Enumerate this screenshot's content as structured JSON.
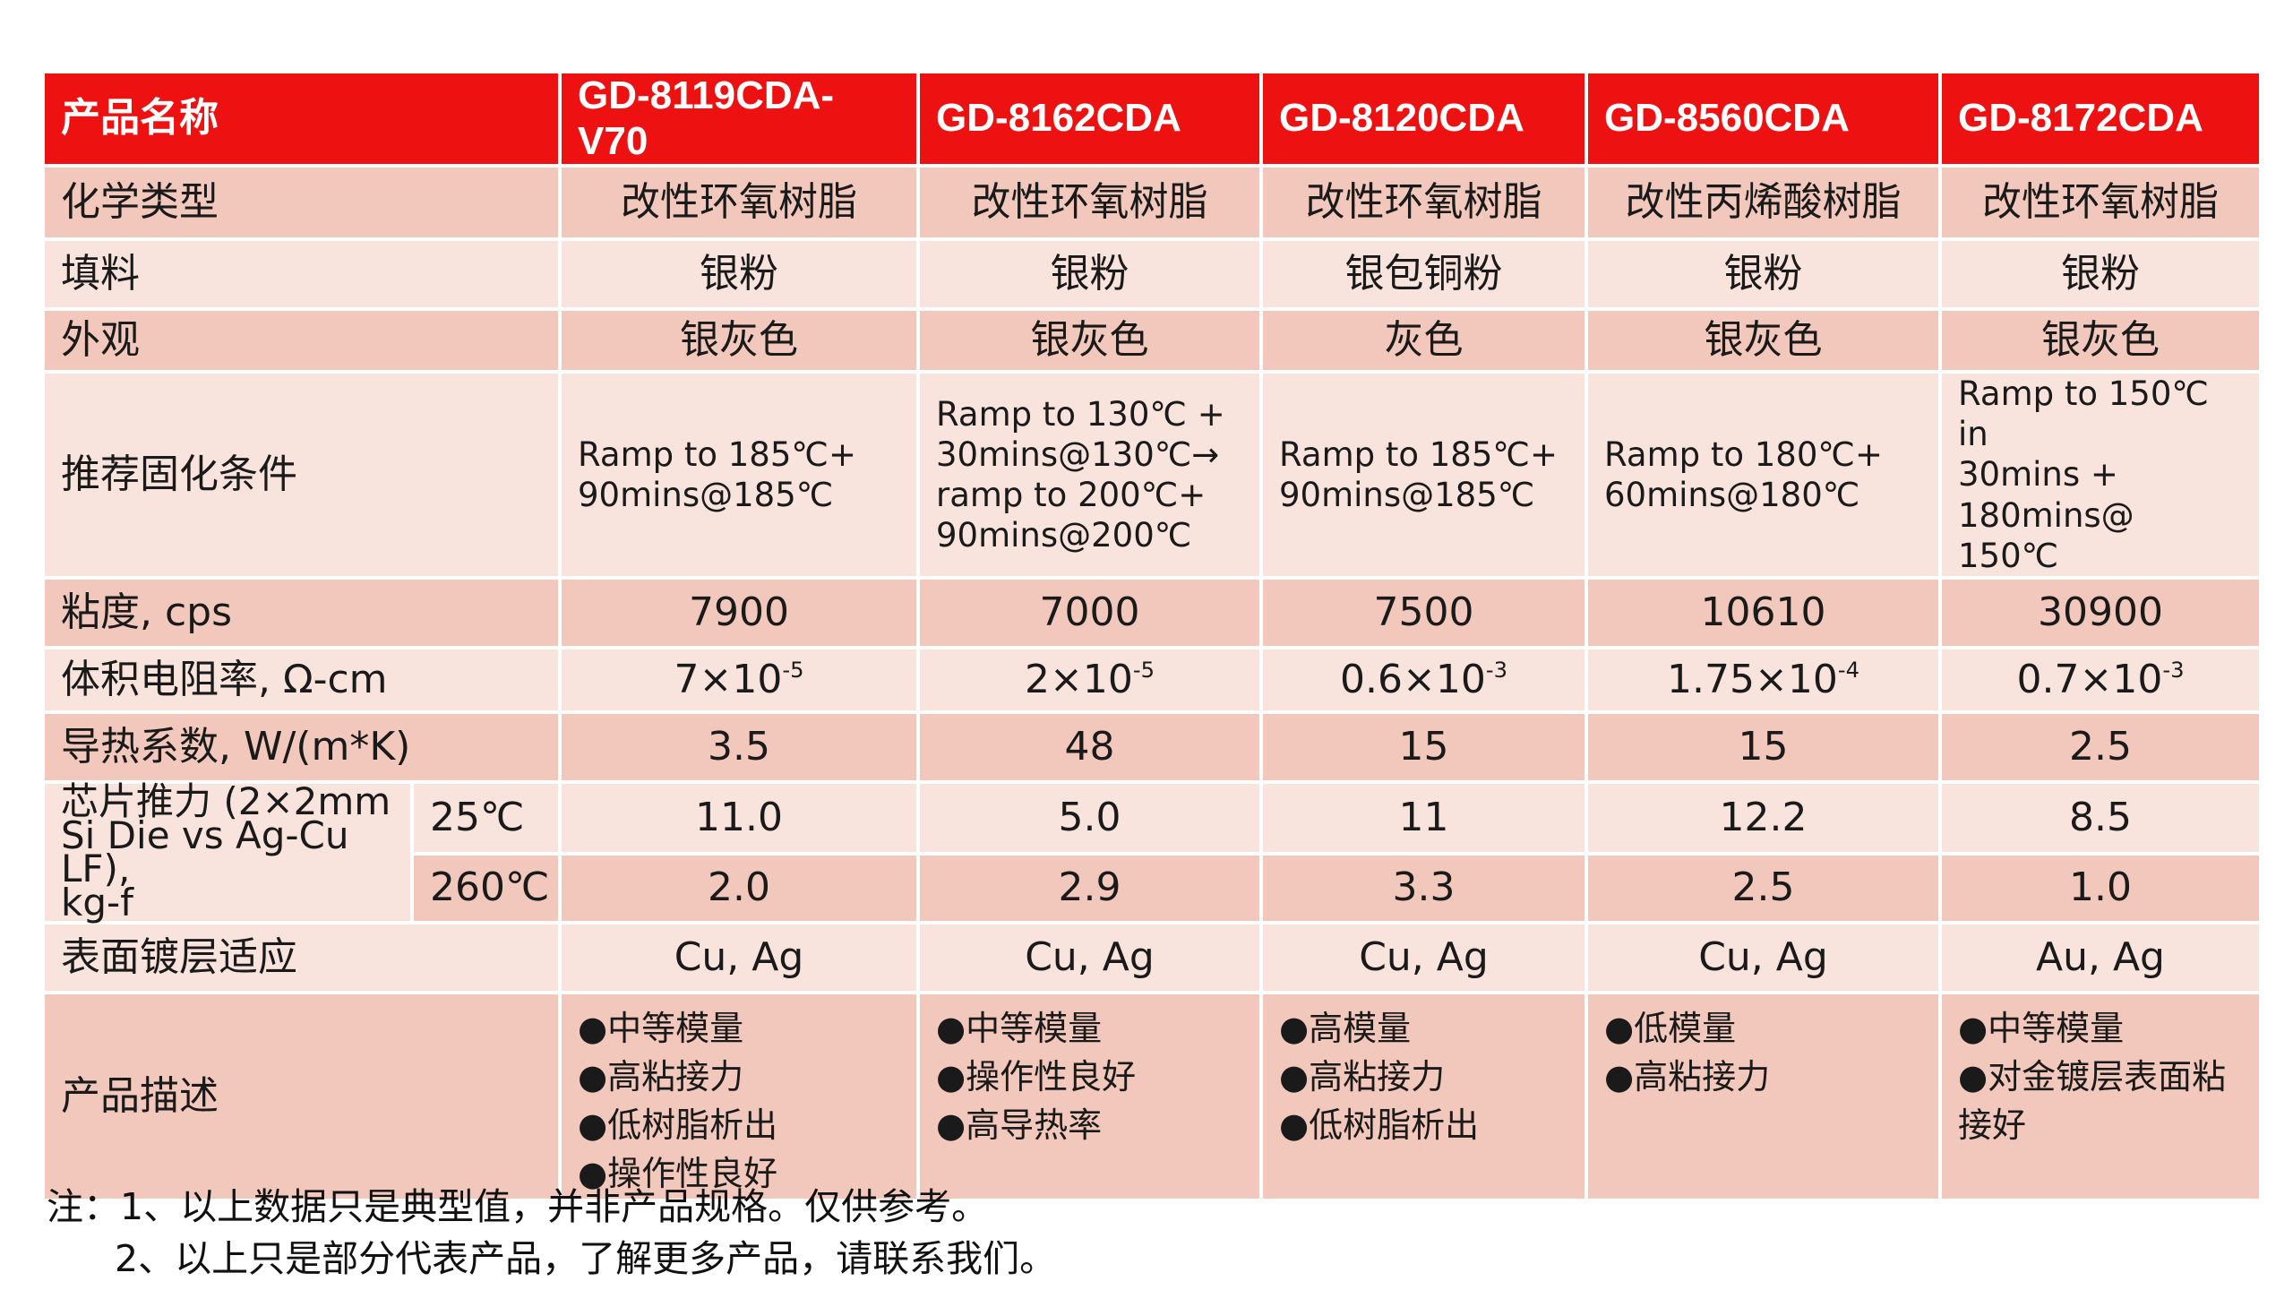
{
  "header": {
    "label": "产品名称",
    "products": [
      "GD-8119CDA-V70",
      "GD-8162CDA",
      "GD-8120CDA",
      "GD-8560CDA",
      "GD-8172CDA"
    ]
  },
  "rows": {
    "chemistry": {
      "label": "化学类型",
      "values": [
        "改性环氧树脂",
        "改性环氧树脂",
        "改性环氧树脂",
        "改性丙烯酸树脂",
        "改性环氧树脂"
      ]
    },
    "filler": {
      "label": "填料",
      "values": [
        "银粉",
        "银粉",
        "银包铜粉",
        "银粉",
        "银粉"
      ]
    },
    "appearance": {
      "label": "外观",
      "values": [
        "银灰色",
        "银灰色",
        "灰色",
        "银灰色",
        "银灰色"
      ]
    },
    "cure": {
      "label": "推荐固化条件",
      "values": [
        [
          "Ramp to 185℃+",
          "90mins@185℃"
        ],
        [
          "Ramp to 130℃ +",
          "30mins@130℃→",
          "ramp to 200℃+",
          "90mins@200℃"
        ],
        [
          "Ramp to 185℃+",
          "90mins@185℃"
        ],
        [
          "Ramp to 180℃+",
          "60mins@180℃"
        ],
        [
          "Ramp to 150℃ in",
          "30mins +",
          "180mins@ 150℃"
        ]
      ]
    },
    "viscosity": {
      "label": "粘度, cps",
      "values": [
        "7900",
        "7000",
        "7500",
        "10610",
        "30900"
      ]
    },
    "resistivity": {
      "label": "体积电阻率, Ω-cm",
      "values": [
        {
          "base": "7×10",
          "exp": "-5"
        },
        {
          "base": "2×10",
          "exp": "-5"
        },
        {
          "base": "0.6×10",
          "exp": "-3"
        },
        {
          "base": "1.75×10",
          "exp": "-4"
        },
        {
          "base": "0.7×10",
          "exp": "-3"
        }
      ]
    },
    "thermal": {
      "label": "导热系数, W/(m*K)",
      "values": [
        "3.5",
        "48",
        "15",
        "15",
        "2.5"
      ]
    },
    "die_shear": {
      "label_lines": [
        "芯片推力 (2×2mm",
        "Si Die vs Ag-Cu LF),",
        "kg-f"
      ],
      "t25": {
        "label": "25℃",
        "values": [
          "11.0",
          "5.0",
          "11",
          "12.2",
          "8.5"
        ]
      },
      "t260": {
        "label": "260℃",
        "values": [
          "2.0",
          "2.9",
          "3.3",
          "2.5",
          "1.0"
        ]
      }
    },
    "plating": {
      "label": "表面镀层适应",
      "values": [
        "Cu, Ag",
        "Cu, Ag",
        "Cu, Ag",
        "Cu, Ag",
        "Au, Ag"
      ]
    },
    "description": {
      "label": "产品描述",
      "values": [
        [
          "●中等模量",
          "●高粘接力",
          "●低树脂析出",
          "●操作性良好"
        ],
        [
          "●中等模量",
          "●操作性良好",
          "●高导热率"
        ],
        [
          "●高模量",
          "●高粘接力",
          "●低树脂析出"
        ],
        [
          "●低模量",
          "●高粘接力"
        ],
        [
          "●中等模量",
          "●对金镀层表面粘接好"
        ]
      ]
    }
  },
  "footnotes": {
    "line1": "注：1、以上数据只是典型值，并非产品规格。仅供参考。",
    "line2": "2、以上只是部分代表产品，了解更多产品，请联系我们。"
  },
  "colors": {
    "header_bg": "#ee1111",
    "row_dark": "#f2c8bc",
    "row_light": "#f8e3dd"
  }
}
